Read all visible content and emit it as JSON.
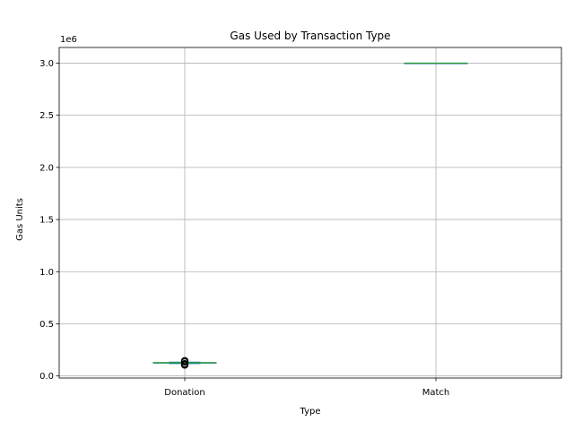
{
  "chart_data": {
    "type": "box",
    "title": "Gas Used by Transaction Type",
    "xlabel": "Type",
    "ylabel": "Gas Units",
    "y_offset_text": "1e6",
    "y_ticks": [
      {
        "value": 0.0,
        "label": "0.0"
      },
      {
        "value": 500000,
        "label": "0.5"
      },
      {
        "value": 1000000,
        "label": "1.0"
      },
      {
        "value": 1500000,
        "label": "1.5"
      },
      {
        "value": 2000000,
        "label": "2.0"
      },
      {
        "value": 2500000,
        "label": "2.5"
      },
      {
        "value": 3000000,
        "label": "3.0"
      }
    ],
    "ylim": [
      -20000,
      3150000
    ],
    "grid": true,
    "categories": [
      "Donation",
      "Match"
    ],
    "boxes": [
      {
        "category": "Donation",
        "min": 118000,
        "q1": 126000,
        "median": 127000,
        "q3": 128000,
        "max": 132000,
        "outliers": [
          105000,
          108000,
          111000,
          114000,
          117000,
          135000,
          138000,
          142000,
          146000
        ]
      },
      {
        "category": "Match",
        "min": 3000000,
        "q1": 3000000,
        "median": 3000000,
        "q3": 3000000,
        "max": 3000000,
        "outliers": []
      }
    ],
    "colors": {
      "box": "#1f77b4",
      "median": "#2ca02c",
      "outlier": "#000000",
      "grid": "#b0b0b0",
      "axes": "#000000"
    }
  }
}
